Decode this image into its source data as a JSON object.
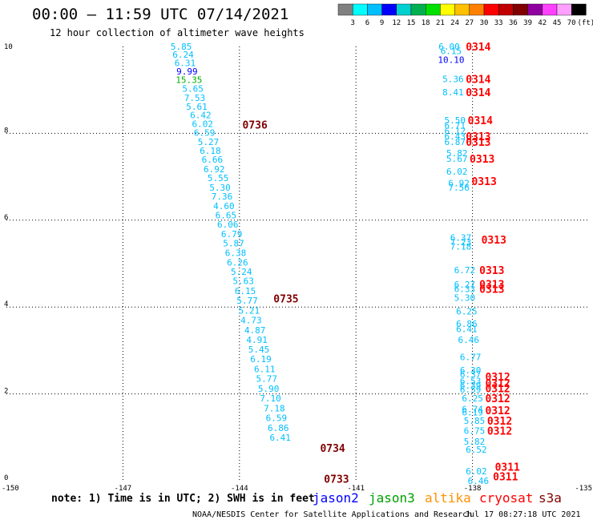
{
  "header": {
    "title": "00:00 – 11:59 UTC 07/14/2021",
    "subtitle": "12 hour collection of altimeter wave heights"
  },
  "colorbar": {
    "colors": [
      "#808080",
      "#00ffff",
      "#00bfff",
      "#0000ff",
      "#00d0d0",
      "#00b050",
      "#00e000",
      "#ffff00",
      "#ffc000",
      "#ff8000",
      "#ff0000",
      "#c00000",
      "#800000",
      "#9000a0",
      "#ff40ff",
      "#ffa0ff",
      "#000000"
    ],
    "labels": [
      "3",
      "6",
      "9",
      "12",
      "15",
      "18",
      "21",
      "24",
      "27",
      "30",
      "33",
      "36",
      "39",
      "42",
      "45",
      "70",
      "(ft)"
    ]
  },
  "footer": {
    "note": "note: 1) Time is in UTC; 2) SWH is in feet",
    "credit": "NOAA/NESDIS Center for Satellite Applications and Research",
    "timestamp": "Jul 17 08:27:18 UTC 2021"
  },
  "legend": [
    {
      "name": "jason2",
      "color": "#0000ff"
    },
    {
      "name": "jason3",
      "color": "#00a000"
    },
    {
      "name": "altika",
      "color": "#ff9000"
    },
    {
      "name": "cryosat",
      "color": "#ff0000"
    },
    {
      "name": "s3a",
      "color": "#800000"
    }
  ],
  "chart_data": {
    "type": "scatter",
    "title": "00:00 – 11:59 UTC 07/14/2021",
    "subtitle": "12 hour collection of altimeter wave heights",
    "xlim": [
      -150,
      -135
    ],
    "ylim": [
      0,
      10
    ],
    "xticks": [
      "-150",
      "-147",
      "-144",
      "-141",
      "-138",
      "-135"
    ],
    "yticks": [
      "0",
      "2",
      "4",
      "6",
      "8",
      "10"
    ],
    "grid": true,
    "tracks": [
      {
        "satellite": "s3a",
        "label_color": "#800000",
        "points": [
          {
            "lon": -145.5,
            "lat": 10.0,
            "v": "5.85",
            "c": "#00bfff"
          },
          {
            "lon": -145.45,
            "lat": 9.82,
            "v": "6.24",
            "c": "#00bfff"
          },
          {
            "lon": -145.4,
            "lat": 9.62,
            "v": "6.31",
            "c": "#00bfff"
          },
          {
            "lon": -145.35,
            "lat": 9.43,
            "v": "9.99",
            "c": "#0000ff"
          },
          {
            "lon": -145.3,
            "lat": 9.23,
            "v": "15.35",
            "c": "#00b000"
          },
          {
            "lon": -145.2,
            "lat": 9.03,
            "v": "5.65",
            "c": "#00bfff"
          },
          {
            "lon": -145.15,
            "lat": 8.82,
            "v": "7.53",
            "c": "#00bfff"
          },
          {
            "lon": -145.1,
            "lat": 8.62,
            "v": "5.61",
            "c": "#00bfff"
          },
          {
            "lon": -145.0,
            "lat": 8.42,
            "v": "6.42",
            "c": "#00bfff"
          },
          {
            "lon": -144.95,
            "lat": 8.22,
            "v": "6.02",
            "c": "#00bfff"
          },
          {
            "lon": -144.9,
            "lat": 8.02,
            "v": "6.59",
            "c": "#00bfff"
          },
          {
            "lon": -144.8,
            "lat": 7.8,
            "v": "5.27",
            "c": "#00bfff"
          },
          {
            "lon": -144.75,
            "lat": 7.6,
            "v": "6.18",
            "c": "#00bfff"
          },
          {
            "lon": -144.7,
            "lat": 7.4,
            "v": "6.66",
            "c": "#00bfff"
          },
          {
            "lon": -144.65,
            "lat": 7.18,
            "v": "6.92",
            "c": "#00bfff"
          },
          {
            "lon": -144.55,
            "lat": 6.97,
            "v": "5.55",
            "c": "#00bfff"
          },
          {
            "lon": -144.5,
            "lat": 6.75,
            "v": "5.30",
            "c": "#00bfff"
          },
          {
            "lon": -144.45,
            "lat": 6.55,
            "v": "7.36",
            "c": "#00bfff"
          },
          {
            "lon": -144.4,
            "lat": 6.33,
            "v": "4.60",
            "c": "#00bfff"
          },
          {
            "lon": -144.35,
            "lat": 6.12,
            "v": "6.65",
            "c": "#00bfff"
          },
          {
            "lon": -144.3,
            "lat": 5.9,
            "v": "6.06",
            "c": "#00bfff"
          },
          {
            "lon": -144.2,
            "lat": 5.68,
            "v": "6.79",
            "c": "#00bfff"
          },
          {
            "lon": -144.15,
            "lat": 5.47,
            "v": "5.87",
            "c": "#00bfff"
          },
          {
            "lon": -144.1,
            "lat": 5.25,
            "v": "6.38",
            "c": "#00bfff"
          },
          {
            "lon": -144.05,
            "lat": 5.03,
            "v": "6.26",
            "c": "#00bfff"
          },
          {
            "lon": -143.95,
            "lat": 4.82,
            "v": "5.24",
            "c": "#00bfff"
          },
          {
            "lon": -143.9,
            "lat": 4.6,
            "v": "5.63",
            "c": "#00bfff"
          },
          {
            "lon": -143.85,
            "lat": 4.37,
            "v": "6.15",
            "c": "#00bfff"
          },
          {
            "lon": -143.8,
            "lat": 4.15,
            "v": "5.77",
            "c": "#00bfff"
          },
          {
            "lon": -143.75,
            "lat": 3.92,
            "v": "5.21",
            "c": "#00bfff"
          },
          {
            "lon": -143.7,
            "lat": 3.7,
            "v": "4.73",
            "c": "#00bfff"
          },
          {
            "lon": -143.6,
            "lat": 3.47,
            "v": "4.87",
            "c": "#00bfff"
          },
          {
            "lon": -143.55,
            "lat": 3.25,
            "v": "4.91",
            "c": "#00bfff"
          },
          {
            "lon": -143.5,
            "lat": 3.03,
            "v": "5.45",
            "c": "#00bfff"
          },
          {
            "lon": -143.45,
            "lat": 2.8,
            "v": "6.19",
            "c": "#00bfff"
          },
          {
            "lon": -143.35,
            "lat": 2.57,
            "v": "6.11",
            "c": "#00bfff"
          },
          {
            "lon": -143.3,
            "lat": 2.35,
            "v": "5.77",
            "c": "#00bfff"
          },
          {
            "lon": -143.25,
            "lat": 2.12,
            "v": "5.90",
            "c": "#00bfff"
          },
          {
            "lon": -143.2,
            "lat": 1.9,
            "v": "7.10",
            "c": "#00bfff"
          },
          {
            "lon": -143.1,
            "lat": 1.67,
            "v": "7.18",
            "c": "#00bfff"
          },
          {
            "lon": -143.05,
            "lat": 1.45,
            "v": "6.59",
            "c": "#00bfff"
          },
          {
            "lon": -143.0,
            "lat": 1.22,
            "v": "6.86",
            "c": "#00bfff"
          },
          {
            "lon": -142.95,
            "lat": 1.0,
            "v": "6.41",
            "c": "#00bfff"
          }
        ],
        "time_labels": [
          {
            "lon": -143.6,
            "lat": 8.2,
            "t": "0736"
          },
          {
            "lon": -142.8,
            "lat": 4.2,
            "t": "0735"
          },
          {
            "lon": -141.6,
            "lat": 0.76,
            "t": "0734"
          },
          {
            "lon": -141.5,
            "lat": 0.05,
            "t": "0733"
          }
        ]
      },
      {
        "satellite": "cryosat",
        "label_color": "#ff0000",
        "points": [
          {
            "lon": -138.6,
            "lat": 10.0,
            "v": "6.00",
            "c": "#00bfff"
          },
          {
            "lon": -138.55,
            "lat": 9.9,
            "v": "6.15",
            "c": "#00bfff"
          },
          {
            "lon": -138.55,
            "lat": 9.7,
            "v": "10.10",
            "c": "#0000ff"
          },
          {
            "lon": -138.5,
            "lat": 9.25,
            "v": "5.36",
            "c": "#00bfff"
          },
          {
            "lon": -138.5,
            "lat": 8.95,
            "v": "8.41",
            "c": "#00bfff"
          },
          {
            "lon": -138.45,
            "lat": 8.3,
            "v": "5.50",
            "c": "#00bfff"
          },
          {
            "lon": -138.45,
            "lat": 8.18,
            "v": "6.71",
            "c": "#00bfff"
          },
          {
            "lon": -138.45,
            "lat": 8.05,
            "v": "6.12",
            "c": "#00bfff"
          },
          {
            "lon": -138.45,
            "lat": 7.93,
            "v": "6.43",
            "c": "#00bfff"
          },
          {
            "lon": -138.45,
            "lat": 7.8,
            "v": "6.87",
            "c": "#00bfff"
          },
          {
            "lon": -138.4,
            "lat": 7.55,
            "v": "5.82",
            "c": "#00bfff"
          },
          {
            "lon": -138.4,
            "lat": 7.42,
            "v": "5.67",
            "c": "#00bfff"
          },
          {
            "lon": -138.4,
            "lat": 7.12,
            "v": "6.02",
            "c": "#00bfff"
          },
          {
            "lon": -138.35,
            "lat": 6.85,
            "v": "6.92",
            "c": "#00bfff"
          },
          {
            "lon": -138.35,
            "lat": 6.75,
            "v": "7.56",
            "c": "#00bfff"
          },
          {
            "lon": -138.3,
            "lat": 5.6,
            "v": "6.37",
            "c": "#00bfff"
          },
          {
            "lon": -138.3,
            "lat": 5.5,
            "v": "7.23",
            "c": "#00bfff"
          },
          {
            "lon": -138.3,
            "lat": 5.4,
            "v": "7.18",
            "c": "#00bfff"
          },
          {
            "lon": -138.2,
            "lat": 4.85,
            "v": "6.72",
            "c": "#00bfff"
          },
          {
            "lon": -138.2,
            "lat": 4.52,
            "v": "6.27",
            "c": "#00bfff"
          },
          {
            "lon": -138.2,
            "lat": 4.42,
            "v": "6.33",
            "c": "#00bfff"
          },
          {
            "lon": -138.2,
            "lat": 4.22,
            "v": "5.30",
            "c": "#00bfff"
          },
          {
            "lon": -138.15,
            "lat": 3.9,
            "v": "6.25",
            "c": "#00bfff"
          },
          {
            "lon": -138.15,
            "lat": 3.62,
            "v": "6.86",
            "c": "#00bfff"
          },
          {
            "lon": -138.15,
            "lat": 3.5,
            "v": "6.41",
            "c": "#00bfff"
          },
          {
            "lon": -138.1,
            "lat": 3.25,
            "v": "6.46",
            "c": "#00bfff"
          },
          {
            "lon": -138.05,
            "lat": 2.85,
            "v": "6.77",
            "c": "#00bfff"
          },
          {
            "lon": -138.05,
            "lat": 2.55,
            "v": "6.30",
            "c": "#00bfff"
          },
          {
            "lon": -138.05,
            "lat": 2.45,
            "v": "6.37",
            "c": "#00bfff"
          },
          {
            "lon": -138.05,
            "lat": 2.3,
            "v": "6.53",
            "c": "#00bfff"
          },
          {
            "lon": -138.05,
            "lat": 2.2,
            "v": "6.39",
            "c": "#00bfff"
          },
          {
            "lon": -138.05,
            "lat": 2.1,
            "v": "6.59",
            "c": "#00bfff"
          },
          {
            "lon": -138.0,
            "lat": 1.9,
            "v": "6.25",
            "c": "#00bfff"
          },
          {
            "lon": -138.0,
            "lat": 1.65,
            "v": "6.74",
            "c": "#00bfff"
          },
          {
            "lon": -138.0,
            "lat": 1.58,
            "v": "6.19",
            "c": "#00bfff"
          },
          {
            "lon": -137.95,
            "lat": 1.38,
            "v": "5.85",
            "c": "#00bfff"
          },
          {
            "lon": -137.95,
            "lat": 1.15,
            "v": "6.75",
            "c": "#00bfff"
          },
          {
            "lon": -137.95,
            "lat": 0.9,
            "v": "5.82",
            "c": "#00bfff"
          },
          {
            "lon": -137.9,
            "lat": 0.72,
            "v": "6.52",
            "c": "#00bfff"
          },
          {
            "lon": -137.9,
            "lat": 0.22,
            "v": "6.02",
            "c": "#00bfff"
          },
          {
            "lon": -137.85,
            "lat": 0.0,
            "v": "6.46",
            "c": "#00bfff"
          }
        ],
        "time_labels": [
          {
            "lon": -137.85,
            "lat": 10.0,
            "t": "0314"
          },
          {
            "lon": -137.85,
            "lat": 9.25,
            "t": "0314"
          },
          {
            "lon": -137.85,
            "lat": 8.95,
            "t": "0314"
          },
          {
            "lon": -137.8,
            "lat": 8.3,
            "t": "0314"
          },
          {
            "lon": -137.85,
            "lat": 7.93,
            "t": "0313"
          },
          {
            "lon": -137.85,
            "lat": 7.8,
            "t": "0313"
          },
          {
            "lon": -137.75,
            "lat": 7.42,
            "t": "0313"
          },
          {
            "lon": -137.7,
            "lat": 6.9,
            "t": "0313"
          },
          {
            "lon": -137.45,
            "lat": 5.55,
            "t": "0313"
          },
          {
            "lon": -137.5,
            "lat": 4.85,
            "t": "0313"
          },
          {
            "lon": -137.5,
            "lat": 4.53,
            "t": "0313"
          },
          {
            "lon": -137.5,
            "lat": 4.42,
            "t": "0313"
          },
          {
            "lon": -137.35,
            "lat": 2.4,
            "t": "0312"
          },
          {
            "lon": -137.35,
            "lat": 2.25,
            "t": "0312"
          },
          {
            "lon": -137.35,
            "lat": 2.13,
            "t": "0312"
          },
          {
            "lon": -137.35,
            "lat": 1.9,
            "t": "0312"
          },
          {
            "lon": -137.35,
            "lat": 1.62,
            "t": "0312"
          },
          {
            "lon": -137.3,
            "lat": 1.38,
            "t": "0312"
          },
          {
            "lon": -137.3,
            "lat": 1.15,
            "t": "0312"
          },
          {
            "lon": -137.1,
            "lat": 0.32,
            "t": "0311"
          },
          {
            "lon": -137.15,
            "lat": 0.1,
            "t": "0311"
          }
        ]
      }
    ]
  }
}
